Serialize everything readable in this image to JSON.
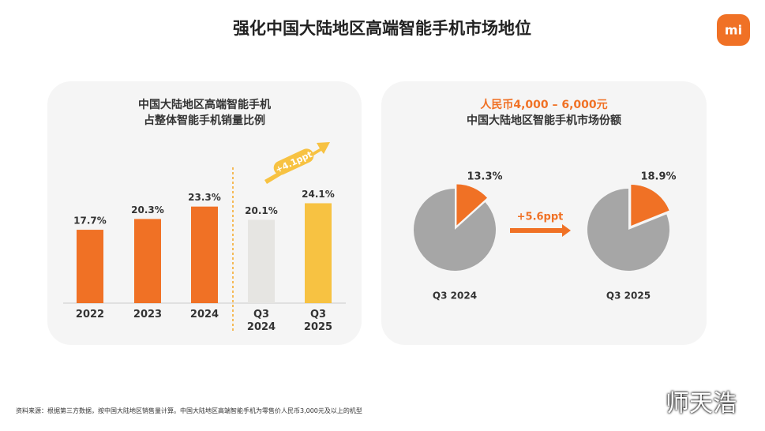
{
  "header": {
    "title": "强化中国大陆地区高端智能手机市场地位",
    "logo": "mi"
  },
  "chart_data": [
    {
      "type": "bar",
      "title": "中国大陆地区高端智能手机",
      "subtitle": "占整体智能手机销量比例",
      "categories": [
        "2022",
        "2023",
        "2024",
        "Q3 2024",
        "Q3 2025"
      ],
      "values": [
        17.7,
        20.3,
        23.3,
        20.1,
        24.1
      ],
      "value_labels": [
        "17.7%",
        "20.3%",
        "23.3%",
        "20.1%",
        "24.1%"
      ],
      "colors": [
        "#f07125",
        "#f07125",
        "#f07125",
        "#e6e5e2",
        "#f7c242"
      ],
      "annotation": "+4.1ppt"
    },
    {
      "type": "pie",
      "title": "人民币4,000 – 6,000元",
      "subtitle": "中国大陆地区智能手机市场份额",
      "categories": [
        "Q3 2024",
        "Q3 2025"
      ],
      "values": [
        13.3,
        18.9
      ],
      "value_labels": [
        "13.3%",
        "18.9%"
      ],
      "color": "#f07125",
      "rest_color": "#a6a6a6",
      "annotation": "+5.6ppt"
    }
  ],
  "footnote": "资料来源：根据第三方数据，按中国大陆地区销售量计算。中国大陆地区高端智能手机为零售价人民币3,000元及以上的机型",
  "watermark": "师天浩"
}
